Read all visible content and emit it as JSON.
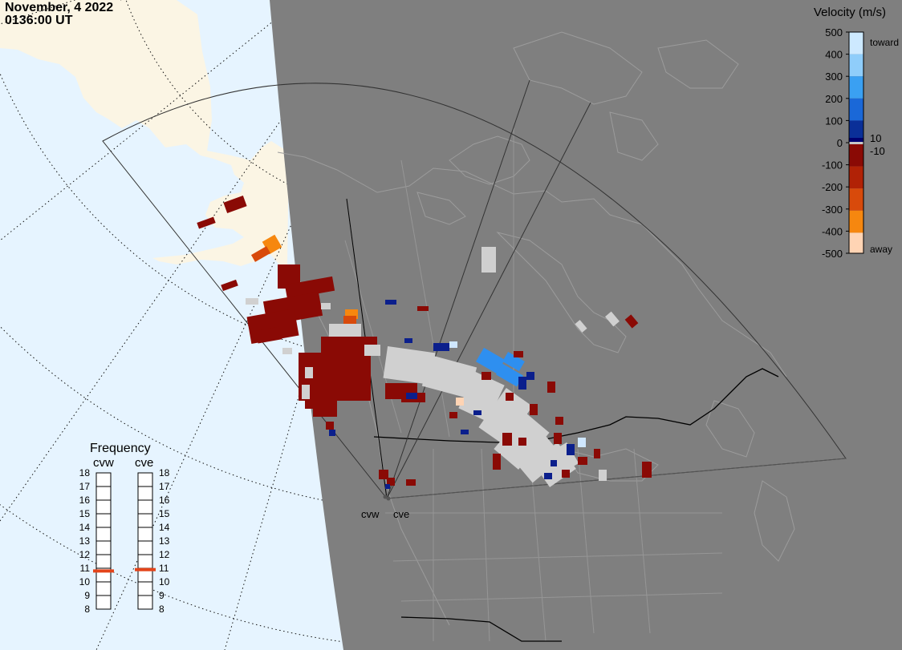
{
  "header": {
    "date": "November, 4 2022",
    "time": "0136:00 UT"
  },
  "velocity_scale": {
    "title": "Velocity (m/s)",
    "ticks": [
      "500",
      "400",
      "300",
      "200",
      "100",
      "0",
      "-100",
      "-200",
      "-300",
      "-400",
      "-500"
    ],
    "zero_band_labels": [
      "10",
      "-10"
    ],
    "toward_label": "toward",
    "away_label": "away",
    "colors": [
      "#cde9ff",
      "#8fcdfa",
      "#3aa0f2",
      "#1a68d8",
      "#0a2f98",
      "#000070",
      "#8a0a05",
      "#b12206",
      "#d84a0b",
      "#f6870f",
      "#ffd4b4"
    ]
  },
  "frequency_panel": {
    "title": "Frequency",
    "radars": [
      {
        "name": "cvw",
        "frequency_mhz": 10.8
      },
      {
        "name": "cve",
        "frequency_mhz": 10.9
      }
    ],
    "scale_labels": [
      "18",
      "17",
      "16",
      "15",
      "14",
      "13",
      "12",
      "11",
      "10",
      "9",
      "8"
    ],
    "marker_color": "#e3441a"
  },
  "radar_sites": [
    {
      "name": "cvw"
    },
    {
      "name": "cve"
    }
  ],
  "colors": {
    "ocean": "#e6f4ff",
    "land": "#fbf5e4",
    "night": "#7f7f7f",
    "ground_scatter": "#d0d0d0"
  }
}
